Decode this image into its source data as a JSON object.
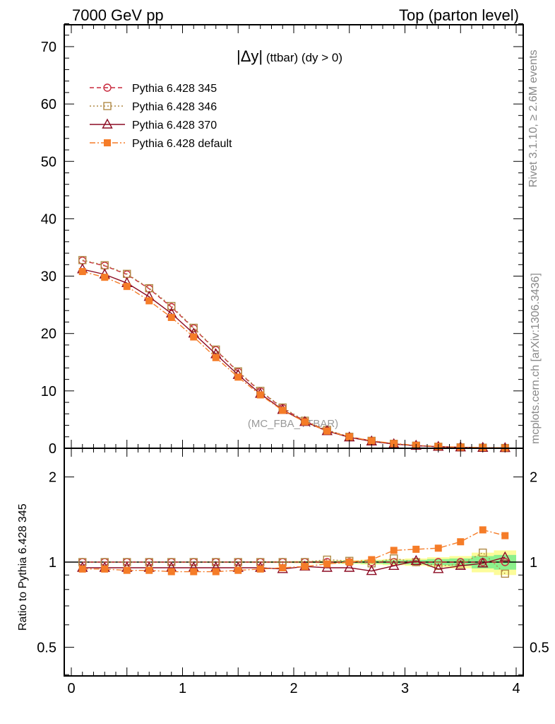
{
  "header": {
    "left": "7000 GeV pp",
    "right": "Top (parton level)"
  },
  "main": {
    "title_main": "|Δy|",
    "title_sub": " (ttbar) (dy > 0)",
    "watermark": "(MC_FBA_TTBAR)"
  },
  "side": {
    "rivet": "Rivet 3.1.10, ≥ 2.6M events",
    "mcplots": "mcplots.cern.ch [arXiv:1306.3436]"
  },
  "ratio": {
    "ylabel": "Ratio to Pythia 6.428 345"
  },
  "legend": {
    "placement": "top-left",
    "entries": [
      {
        "label": "Pythia 6.428 345",
        "marker": "circle-open",
        "dash": "dashed"
      },
      {
        "label": "Pythia 6.428 346",
        "marker": "square-open",
        "dash": "dotted"
      },
      {
        "label": "Pythia 6.428 370",
        "marker": "triangle-open",
        "dash": "solid"
      },
      {
        "label": "Pythia 6.428 default",
        "marker": "square-filled",
        "dash": "dashdot"
      }
    ]
  },
  "chart_data": [
    {
      "type": "line",
      "panel": "main",
      "xlim": [
        0,
        4
      ],
      "ylim": [
        0,
        74
      ],
      "yticks": [
        0,
        10,
        20,
        30,
        40,
        50,
        60,
        70
      ],
      "x": [
        0.1,
        0.3,
        0.5,
        0.7,
        0.9,
        1.1,
        1.3,
        1.5,
        1.7,
        1.9,
        2.1,
        2.3,
        2.5,
        2.7,
        2.9,
        3.1,
        3.3,
        3.5,
        3.7,
        3.9
      ],
      "series": [
        {
          "name": "Pythia 6.428 345",
          "color": "#c8283c",
          "values": [
            32.7,
            31.8,
            30.3,
            27.8,
            24.6,
            20.9,
            17.1,
            13.3,
            9.9,
            7.0,
            4.7,
            3.1,
            2.0,
            1.3,
            0.75,
            0.45,
            0.28,
            0.16,
            0.09,
            0.05
          ]
        },
        {
          "name": "Pythia 6.428 346",
          "color": "#b08a46",
          "values": [
            32.8,
            31.9,
            30.4,
            27.9,
            24.8,
            21.0,
            17.2,
            13.4,
            10.0,
            7.1,
            4.8,
            3.2,
            2.0,
            1.3,
            0.78,
            0.45,
            0.27,
            0.16,
            0.1,
            0.05
          ]
        },
        {
          "name": "Pythia 6.428 370",
          "color": "#8c0c24",
          "values": [
            31.2,
            30.3,
            28.8,
            26.4,
            23.5,
            20.0,
            16.4,
            12.8,
            9.5,
            6.7,
            4.6,
            3.0,
            1.9,
            1.2,
            0.73,
            0.46,
            0.27,
            0.16,
            0.09,
            0.05
          ]
        },
        {
          "name": "Pythia 6.428 default",
          "color": "#f57c28",
          "values": [
            30.8,
            29.8,
            28.2,
            25.7,
            22.8,
            19.4,
            15.8,
            12.4,
            9.3,
            6.6,
            4.6,
            3.0,
            2.0,
            1.3,
            0.83,
            0.51,
            0.31,
            0.19,
            0.12,
            0.06
          ]
        }
      ]
    },
    {
      "type": "line",
      "panel": "ratio",
      "xlim": [
        0,
        4
      ],
      "ylim": [
        0.4,
        2.4
      ],
      "yscale": "log",
      "yticks": [
        0.5,
        1,
        2
      ],
      "xticks": [
        0,
        1,
        2,
        3,
        4
      ],
      "x": [
        0.1,
        0.3,
        0.5,
        0.7,
        0.9,
        1.1,
        1.3,
        1.5,
        1.7,
        1.9,
        2.1,
        2.3,
        2.5,
        2.7,
        2.9,
        3.1,
        3.3,
        3.5,
        3.7,
        3.9
      ],
      "band_halfwidth_yellow": [
        0.003,
        0.003,
        0.003,
        0.003,
        0.004,
        0.004,
        0.005,
        0.006,
        0.007,
        0.008,
        0.01,
        0.012,
        0.015,
        0.02,
        0.025,
        0.03,
        0.04,
        0.05,
        0.08,
        0.1
      ],
      "band_halfwidth_green": [
        0.002,
        0.002,
        0.002,
        0.002,
        0.003,
        0.003,
        0.003,
        0.004,
        0.004,
        0.005,
        0.006,
        0.007,
        0.009,
        0.012,
        0.015,
        0.018,
        0.025,
        0.03,
        0.05,
        0.06
      ],
      "series": [
        {
          "name": "Pythia 6.428 345",
          "color": "#c8283c",
          "values": [
            1,
            1,
            1,
            1,
            1,
            1,
            1,
            1,
            1,
            1,
            1,
            1,
            1,
            1,
            1,
            1,
            1,
            1,
            1,
            1
          ]
        },
        {
          "name": "Pythia 6.428 346",
          "color": "#b08a46",
          "values": [
            1.0,
            1.0,
            1.0,
            1.0,
            1.0,
            1.0,
            1.0,
            1.0,
            1.0,
            1.0,
            1.0,
            1.02,
            1.01,
            0.99,
            1.03,
            1.0,
            0.97,
            0.98,
            1.08,
            0.91
          ]
        },
        {
          "name": "Pythia 6.428 370",
          "color": "#8c0c24",
          "values": [
            0.955,
            0.955,
            0.955,
            0.955,
            0.955,
            0.955,
            0.955,
            0.955,
            0.955,
            0.945,
            0.965,
            0.955,
            0.955,
            0.93,
            0.97,
            1.01,
            0.945,
            0.97,
            0.99,
            1.04
          ]
        },
        {
          "name": "Pythia 6.428 default",
          "color": "#f57c28",
          "values": [
            0.945,
            0.945,
            0.935,
            0.935,
            0.925,
            0.925,
            0.925,
            0.935,
            0.945,
            0.955,
            0.965,
            0.985,
            1.0,
            1.02,
            1.1,
            1.11,
            1.12,
            1.18,
            1.3,
            1.24
          ]
        }
      ]
    }
  ]
}
